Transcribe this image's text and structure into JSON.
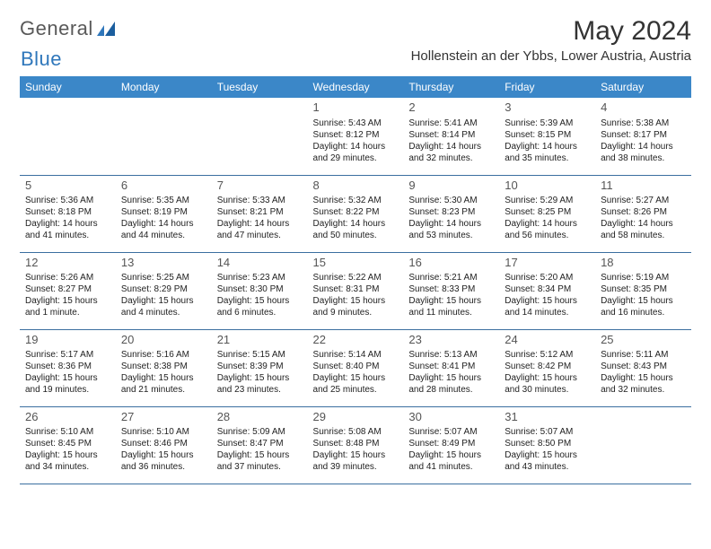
{
  "brand": {
    "word1": "General",
    "word2": "Blue"
  },
  "title": "May 2024",
  "location": "Hollenstein an der Ybbs, Lower Austria, Austria",
  "colors": {
    "header_bg": "#3b87c8",
    "header_text": "#ffffff",
    "row_border": "#3b6fa0",
    "brand_gray": "#595959",
    "brand_blue": "#2f77bb",
    "text": "#222222",
    "daynum": "#555555",
    "background": "#ffffff"
  },
  "day_headers": [
    "Sunday",
    "Monday",
    "Tuesday",
    "Wednesday",
    "Thursday",
    "Friday",
    "Saturday"
  ],
  "weeks": [
    [
      null,
      null,
      null,
      {
        "n": "1",
        "sr": "5:43 AM",
        "ss": "8:12 PM",
        "dl": "14 hours and 29 minutes."
      },
      {
        "n": "2",
        "sr": "5:41 AM",
        "ss": "8:14 PM",
        "dl": "14 hours and 32 minutes."
      },
      {
        "n": "3",
        "sr": "5:39 AM",
        "ss": "8:15 PM",
        "dl": "14 hours and 35 minutes."
      },
      {
        "n": "4",
        "sr": "5:38 AM",
        "ss": "8:17 PM",
        "dl": "14 hours and 38 minutes."
      }
    ],
    [
      {
        "n": "5",
        "sr": "5:36 AM",
        "ss": "8:18 PM",
        "dl": "14 hours and 41 minutes."
      },
      {
        "n": "6",
        "sr": "5:35 AM",
        "ss": "8:19 PM",
        "dl": "14 hours and 44 minutes."
      },
      {
        "n": "7",
        "sr": "5:33 AM",
        "ss": "8:21 PM",
        "dl": "14 hours and 47 minutes."
      },
      {
        "n": "8",
        "sr": "5:32 AM",
        "ss": "8:22 PM",
        "dl": "14 hours and 50 minutes."
      },
      {
        "n": "9",
        "sr": "5:30 AM",
        "ss": "8:23 PM",
        "dl": "14 hours and 53 minutes."
      },
      {
        "n": "10",
        "sr": "5:29 AM",
        "ss": "8:25 PM",
        "dl": "14 hours and 56 minutes."
      },
      {
        "n": "11",
        "sr": "5:27 AM",
        "ss": "8:26 PM",
        "dl": "14 hours and 58 minutes."
      }
    ],
    [
      {
        "n": "12",
        "sr": "5:26 AM",
        "ss": "8:27 PM",
        "dl": "15 hours and 1 minute."
      },
      {
        "n": "13",
        "sr": "5:25 AM",
        "ss": "8:29 PM",
        "dl": "15 hours and 4 minutes."
      },
      {
        "n": "14",
        "sr": "5:23 AM",
        "ss": "8:30 PM",
        "dl": "15 hours and 6 minutes."
      },
      {
        "n": "15",
        "sr": "5:22 AM",
        "ss": "8:31 PM",
        "dl": "15 hours and 9 minutes."
      },
      {
        "n": "16",
        "sr": "5:21 AM",
        "ss": "8:33 PM",
        "dl": "15 hours and 11 minutes."
      },
      {
        "n": "17",
        "sr": "5:20 AM",
        "ss": "8:34 PM",
        "dl": "15 hours and 14 minutes."
      },
      {
        "n": "18",
        "sr": "5:19 AM",
        "ss": "8:35 PM",
        "dl": "15 hours and 16 minutes."
      }
    ],
    [
      {
        "n": "19",
        "sr": "5:17 AM",
        "ss": "8:36 PM",
        "dl": "15 hours and 19 minutes."
      },
      {
        "n": "20",
        "sr": "5:16 AM",
        "ss": "8:38 PM",
        "dl": "15 hours and 21 minutes."
      },
      {
        "n": "21",
        "sr": "5:15 AM",
        "ss": "8:39 PM",
        "dl": "15 hours and 23 minutes."
      },
      {
        "n": "22",
        "sr": "5:14 AM",
        "ss": "8:40 PM",
        "dl": "15 hours and 25 minutes."
      },
      {
        "n": "23",
        "sr": "5:13 AM",
        "ss": "8:41 PM",
        "dl": "15 hours and 28 minutes."
      },
      {
        "n": "24",
        "sr": "5:12 AM",
        "ss": "8:42 PM",
        "dl": "15 hours and 30 minutes."
      },
      {
        "n": "25",
        "sr": "5:11 AM",
        "ss": "8:43 PM",
        "dl": "15 hours and 32 minutes."
      }
    ],
    [
      {
        "n": "26",
        "sr": "5:10 AM",
        "ss": "8:45 PM",
        "dl": "15 hours and 34 minutes."
      },
      {
        "n": "27",
        "sr": "5:10 AM",
        "ss": "8:46 PM",
        "dl": "15 hours and 36 minutes."
      },
      {
        "n": "28",
        "sr": "5:09 AM",
        "ss": "8:47 PM",
        "dl": "15 hours and 37 minutes."
      },
      {
        "n": "29",
        "sr": "5:08 AM",
        "ss": "8:48 PM",
        "dl": "15 hours and 39 minutes."
      },
      {
        "n": "30",
        "sr": "5:07 AM",
        "ss": "8:49 PM",
        "dl": "15 hours and 41 minutes."
      },
      {
        "n": "31",
        "sr": "5:07 AM",
        "ss": "8:50 PM",
        "dl": "15 hours and 43 minutes."
      },
      null
    ]
  ],
  "labels": {
    "sunrise": "Sunrise:",
    "sunset": "Sunset:",
    "daylight": "Daylight:"
  }
}
